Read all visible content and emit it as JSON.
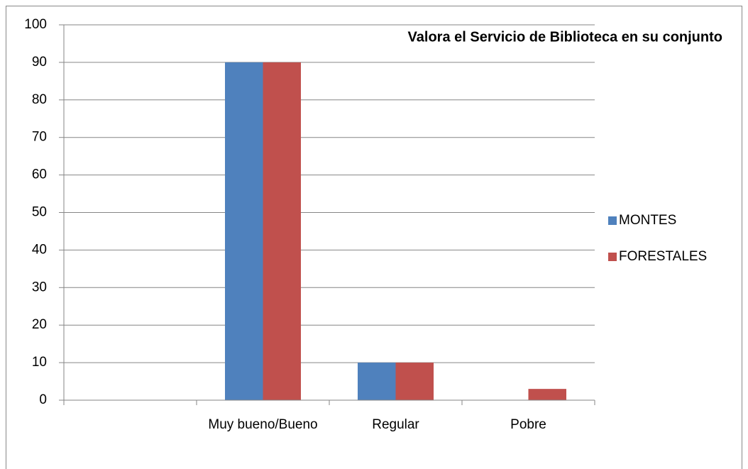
{
  "chart_data": {
    "type": "bar",
    "title": "Valora el Servicio de Biblioteca en su conjunto",
    "categories": [
      null,
      "Muy bueno/Bueno",
      "Regular",
      "Pobre"
    ],
    "series": [
      {
        "name": "MONTES",
        "color": "#4f81bd",
        "values": [
          null,
          90,
          10,
          0
        ]
      },
      {
        "name": "FORESTALES",
        "color": "#c0504d",
        "values": [
          null,
          90,
          10,
          3
        ]
      }
    ],
    "ylim": [
      0,
      100
    ],
    "yticks": [
      0,
      10,
      20,
      30,
      40,
      50,
      60,
      70,
      80,
      90,
      100
    ],
    "grid": true,
    "legend": "right"
  }
}
